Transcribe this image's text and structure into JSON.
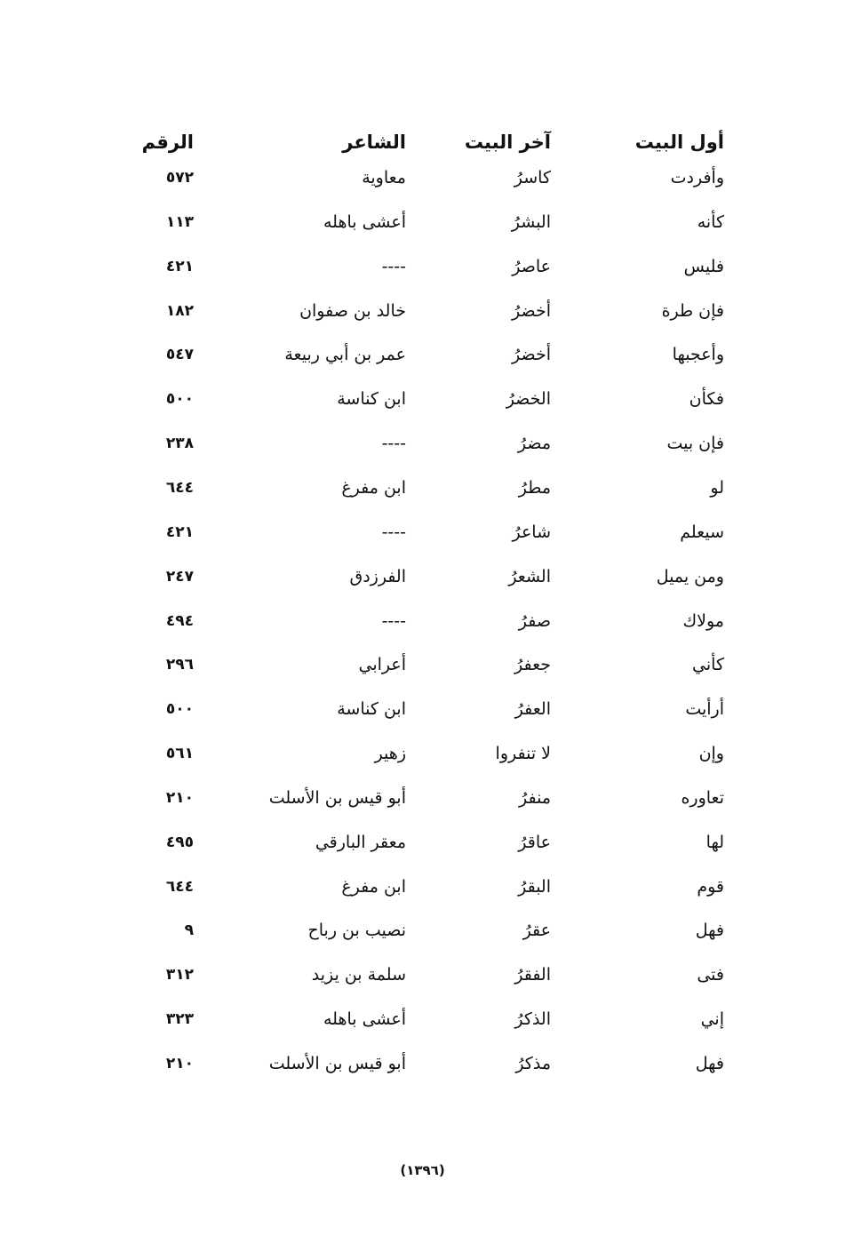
{
  "headers": {
    "first": "أول البيت",
    "last": "آخر البيت",
    "poet": "الشاعر",
    "number": "الرقم"
  },
  "rows": [
    {
      "first": "وأفردت",
      "last": "كاسرُ",
      "poet": "معاوية",
      "number": "٥٧٢"
    },
    {
      "first": "كأنه",
      "last": "البشرُ",
      "poet": "أعشى باهله",
      "number": "١١٣"
    },
    {
      "first": "فليس",
      "last": "عاصرُ",
      "poet": "----",
      "number": "٤٢١"
    },
    {
      "first": "فإن طرة",
      "last": "أخضرُ",
      "poet": "خالد بن صفوان",
      "number": "١٨٢"
    },
    {
      "first": "وأعجبها",
      "last": "أخضرُ",
      "poet": "عمر بن أبي ربيعة",
      "number": "٥٤٧"
    },
    {
      "first": "فكأن",
      "last": "الخضرُ",
      "poet": "ابن كناسة",
      "number": "٥٠٠"
    },
    {
      "first": "فإن بيت",
      "last": "مضرُ",
      "poet": "----",
      "number": "٢٣٨"
    },
    {
      "first": "لو",
      "last": "مطرُ",
      "poet": "ابن مفرغ",
      "number": "٦٤٤"
    },
    {
      "first": "سيعلم",
      "last": "شاعرُ",
      "poet": "----",
      "number": "٤٢١"
    },
    {
      "first": "ومن يميل",
      "last": "الشعرُ",
      "poet": "الفرزدق",
      "number": "٢٤٧"
    },
    {
      "first": "مولاك",
      "last": "صفرُ",
      "poet": "----",
      "number": "٤٩٤"
    },
    {
      "first": "كأني",
      "last": "جعفرُ",
      "poet": "أعرابي",
      "number": "٢٩٦"
    },
    {
      "first": "أرأيت",
      "last": "العفرُ",
      "poet": "ابن كناسة",
      "number": "٥٠٠"
    },
    {
      "first": "وإن",
      "last": "لا تنفروا",
      "poet": "زهير",
      "number": "٥٦١"
    },
    {
      "first": "تعاوره",
      "last": "منفرُ",
      "poet": "أبو قيس بن الأسلت",
      "number": "٢١٠"
    },
    {
      "first": "لها",
      "last": "عاقرُ",
      "poet": "معقر البارقي",
      "number": "٤٩٥"
    },
    {
      "first": "قوم",
      "last": "البقرُ",
      "poet": "ابن مفرغ",
      "number": "٦٤٤"
    },
    {
      "first": "فهل",
      "last": "عقرُ",
      "poet": "نصيب بن رباح",
      "number": "٩"
    },
    {
      "first": "فتى",
      "last": "الفقرُ",
      "poet": "سلمة بن يزيد",
      "number": "٣١٢"
    },
    {
      "first": "إني",
      "last": "الذكرُ",
      "poet": "أعشى باهله",
      "number": "٣٢٣"
    },
    {
      "first": "فهل",
      "last": "مذكرُ",
      "poet": "أبو قيس بن الأسلت",
      "number": "٢١٠"
    }
  ],
  "page_number": "(١٣٩٦)"
}
